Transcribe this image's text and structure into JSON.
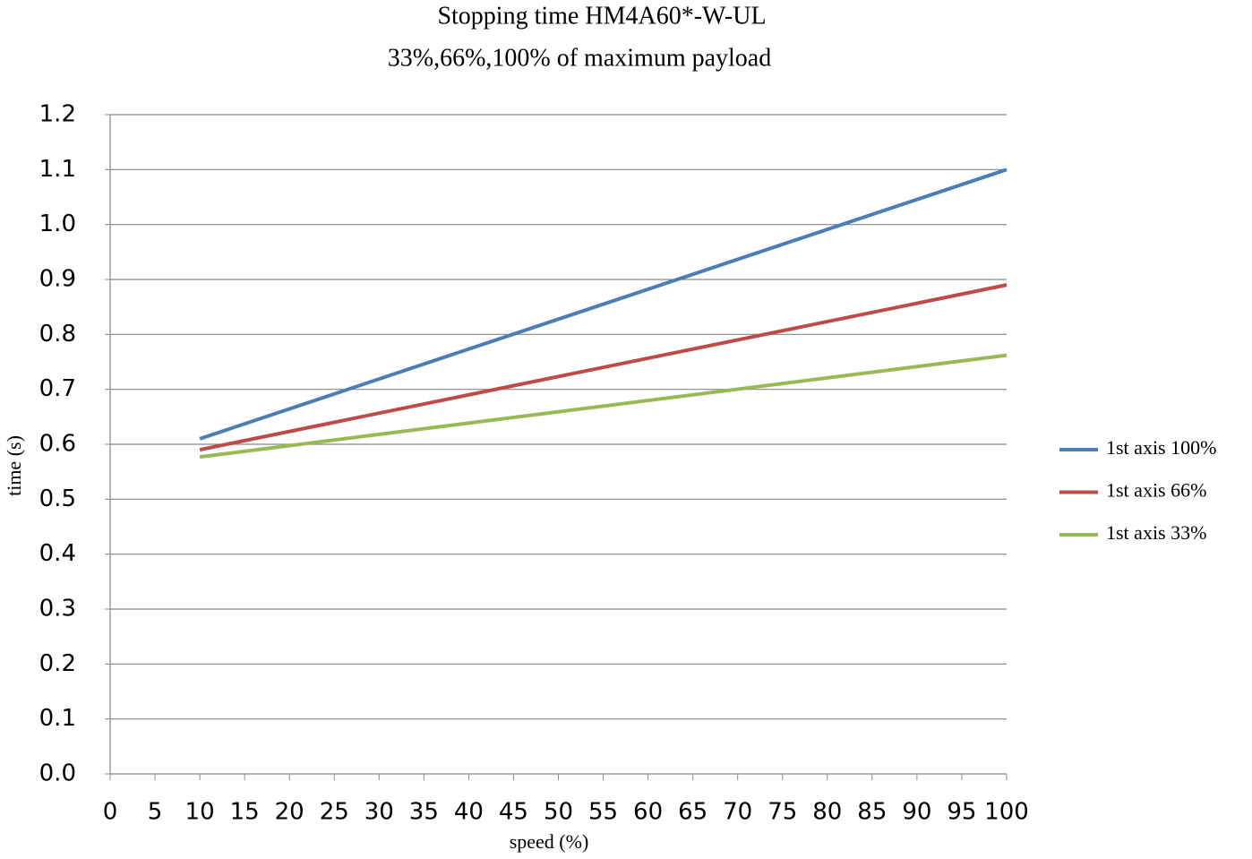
{
  "chart_data": {
    "type": "line",
    "title": "Stopping time HM4A60*-W-UL",
    "subtitle": "33%,66%,100% of maximum payload",
    "x_label": "speed (%)",
    "y_label": "time (s)",
    "x": [
      10,
      100
    ],
    "series": [
      {
        "name": "1st axis 100%",
        "color": "#4a7ebb",
        "values": [
          0.61,
          1.1
        ]
      },
      {
        "name": "1st axis 66%",
        "color": "#be4b48",
        "values": [
          0.59,
          0.89
        ]
      },
      {
        "name": "1st axis 33%",
        "color": "#98b954",
        "values": [
          0.577,
          0.762
        ]
      }
    ],
    "xlim": [
      0,
      100
    ],
    "xticks": [
      0,
      5,
      10,
      15,
      20,
      25,
      30,
      35,
      40,
      45,
      50,
      55,
      60,
      65,
      70,
      75,
      80,
      85,
      90,
      95,
      100
    ],
    "ylim": [
      0,
      1.2
    ],
    "yticks": [
      {
        "value": 0,
        "label": "0.0"
      },
      0.1,
      0.2,
      0.3,
      0.4,
      0.5,
      0.6,
      0.7,
      0.8,
      0.9,
      {
        "value": 1,
        "label": "1.0"
      },
      1.1,
      1.2
    ],
    "grid": true,
    "legend": "right"
  }
}
